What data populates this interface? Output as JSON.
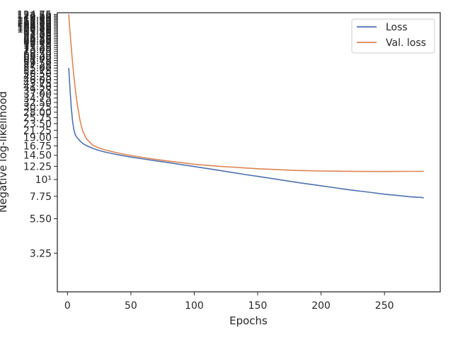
{
  "chart_data": {
    "type": "line",
    "xlabel": "Epochs",
    "ylabel": "Negative log-likelihood",
    "yscale": "log",
    "xlim": [
      -8,
      294
    ],
    "ylim": [
      1.8,
      128
    ],
    "xticks": [
      0,
      50,
      100,
      150,
      200,
      250
    ],
    "xtick_labels": [
      "0",
      "50",
      "100",
      "150",
      "200",
      "250"
    ],
    "yticks": [
      3.25,
      5.5,
      7.75,
      10,
      12.25,
      14.5,
      16.75,
      19,
      21.25,
      23.5,
      25.75,
      28,
      30.25,
      32.5,
      34.75,
      37,
      39.25,
      41.5,
      43.75,
      46,
      48.25,
      50.5,
      52.75,
      55,
      57.25,
      59.5,
      61.75,
      64,
      66.25,
      68.5,
      70.75,
      73,
      75.25,
      77.5,
      79.75,
      82,
      84.25,
      86.5,
      88.75,
      91,
      93.25,
      95.5,
      97.75,
      100,
      102.25,
      104.5,
      106.75,
      109,
      111.25,
      113.5,
      115.75,
      118,
      120.25,
      122.5,
      124.75
    ],
    "ytick_labels": [
      "3.25",
      "5.50",
      "7.75",
      "10¹",
      "12.25",
      "14.50",
      "16.75",
      "19.00",
      "21.25",
      "23.50",
      "25.75",
      "28.00",
      "30.25",
      "32.50",
      "34.75",
      "37.00",
      "39.25",
      "41.50",
      "43.75",
      "46.00",
      "48.25",
      "50.50",
      "52.75",
      "55.00",
      "57.25",
      "59.50",
      "61.75",
      "64.00",
      "66.25",
      "68.50",
      "70.75",
      "73.00",
      "75.25",
      "77.50",
      "79.75",
      "82.00",
      "84.25",
      "86.50",
      "88.75",
      "91.00",
      "93.25",
      "95.50",
      "97.75",
      "100.00",
      "102.25",
      "104.50",
      "106.75",
      "109.00",
      "111.25",
      "113.50",
      "115.75",
      "118.00",
      "120.25",
      "122.50",
      "124.75"
    ],
    "legend_position": "upper right",
    "series": [
      {
        "name": "Loss",
        "color": "#4c72b0",
        "x": [
          1,
          2,
          3,
          4,
          5,
          6,
          7,
          8,
          10,
          12,
          15,
          20,
          25,
          30,
          40,
          50,
          60,
          70,
          80,
          90,
          100,
          110,
          120,
          130,
          140,
          150,
          160,
          170,
          180,
          190,
          200,
          210,
          220,
          230,
          240,
          250,
          260,
          270,
          280,
          281
        ],
        "y": [
          55,
          40,
          30,
          24.5,
          21.5,
          20.0,
          19.3,
          18.8,
          18.0,
          17.4,
          16.8,
          16.1,
          15.6,
          15.2,
          14.6,
          14.1,
          13.7,
          13.3,
          12.95,
          12.55,
          12.2,
          11.85,
          11.5,
          11.15,
          10.8,
          10.5,
          10.2,
          9.9,
          9.6,
          9.35,
          9.1,
          8.85,
          8.6,
          8.4,
          8.2,
          8.0,
          7.85,
          7.7,
          7.6,
          7.55
        ]
      },
      {
        "name": "Val. loss",
        "color": "#dd8452",
        "x": [
          1,
          2,
          3,
          4,
          5,
          6,
          7,
          8,
          10,
          12,
          15,
          20,
          25,
          30,
          40,
          50,
          60,
          70,
          80,
          90,
          100,
          110,
          120,
          130,
          140,
          150,
          160,
          170,
          180,
          190,
          200,
          210,
          220,
          230,
          240,
          250,
          260,
          270,
          280,
          281
        ],
        "y": [
          125,
          95,
          75,
          60,
          49,
          41,
          35,
          30.5,
          24.5,
          21.0,
          18.6,
          16.9,
          16.2,
          15.7,
          15.0,
          14.45,
          14.0,
          13.6,
          13.25,
          12.95,
          12.65,
          12.45,
          12.25,
          12.1,
          11.95,
          11.8,
          11.7,
          11.6,
          11.5,
          11.45,
          11.4,
          11.38,
          11.35,
          11.33,
          11.32,
          11.32,
          11.33,
          11.34,
          11.35,
          11.36
        ]
      }
    ]
  }
}
